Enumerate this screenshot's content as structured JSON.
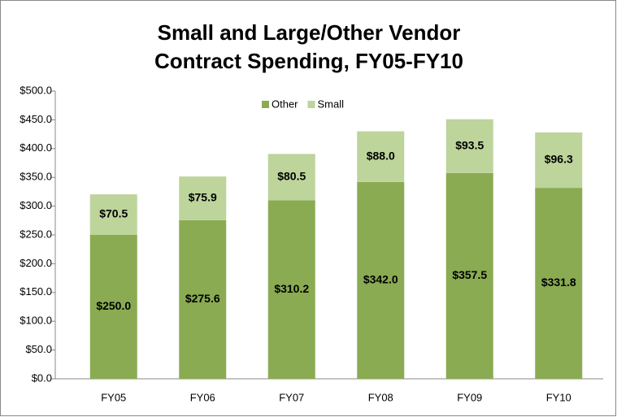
{
  "chart_data": {
    "type": "stacked_bar",
    "title": [
      "Small and Large/Other Vendor",
      "Contract Spending, FY05-FY10"
    ],
    "categories": [
      "FY05",
      "FY06",
      "FY07",
      "FY08",
      "FY09",
      "FY10"
    ],
    "series": [
      {
        "name": "Other",
        "color": "#8aab52",
        "values": [
          250.0,
          275.6,
          310.2,
          342.0,
          357.5,
          331.8
        ],
        "value_labels": [
          "$250.0",
          "$275.6",
          "$310.2",
          "$342.0",
          "$357.5",
          "$331.8"
        ]
      },
      {
        "name": "Small",
        "color": "#bdd49b",
        "values": [
          70.5,
          75.9,
          80.5,
          88.0,
          93.5,
          96.3
        ],
        "value_labels": [
          "$70.5",
          "$75.9",
          "$80.5",
          "$88.0",
          "$93.5",
          "$96.3"
        ]
      }
    ],
    "ylim": [
      0,
      500
    ],
    "yticks": [
      {
        "value": 0,
        "label": "$0.0"
      },
      {
        "value": 50,
        "label": "$50.0"
      },
      {
        "value": 100,
        "label": "$100.0"
      },
      {
        "value": 150,
        "label": "$150.0"
      },
      {
        "value": 200,
        "label": "$200.0"
      },
      {
        "value": 250,
        "label": "$250.0"
      },
      {
        "value": 300,
        "label": "$300.0"
      },
      {
        "value": 350,
        "label": "$350.0"
      },
      {
        "value": 400,
        "label": "$400.0"
      },
      {
        "value": 450,
        "label": "$450.0"
      },
      {
        "value": 500,
        "label": "$500.0"
      }
    ],
    "legend": "top",
    "grid": false
  }
}
